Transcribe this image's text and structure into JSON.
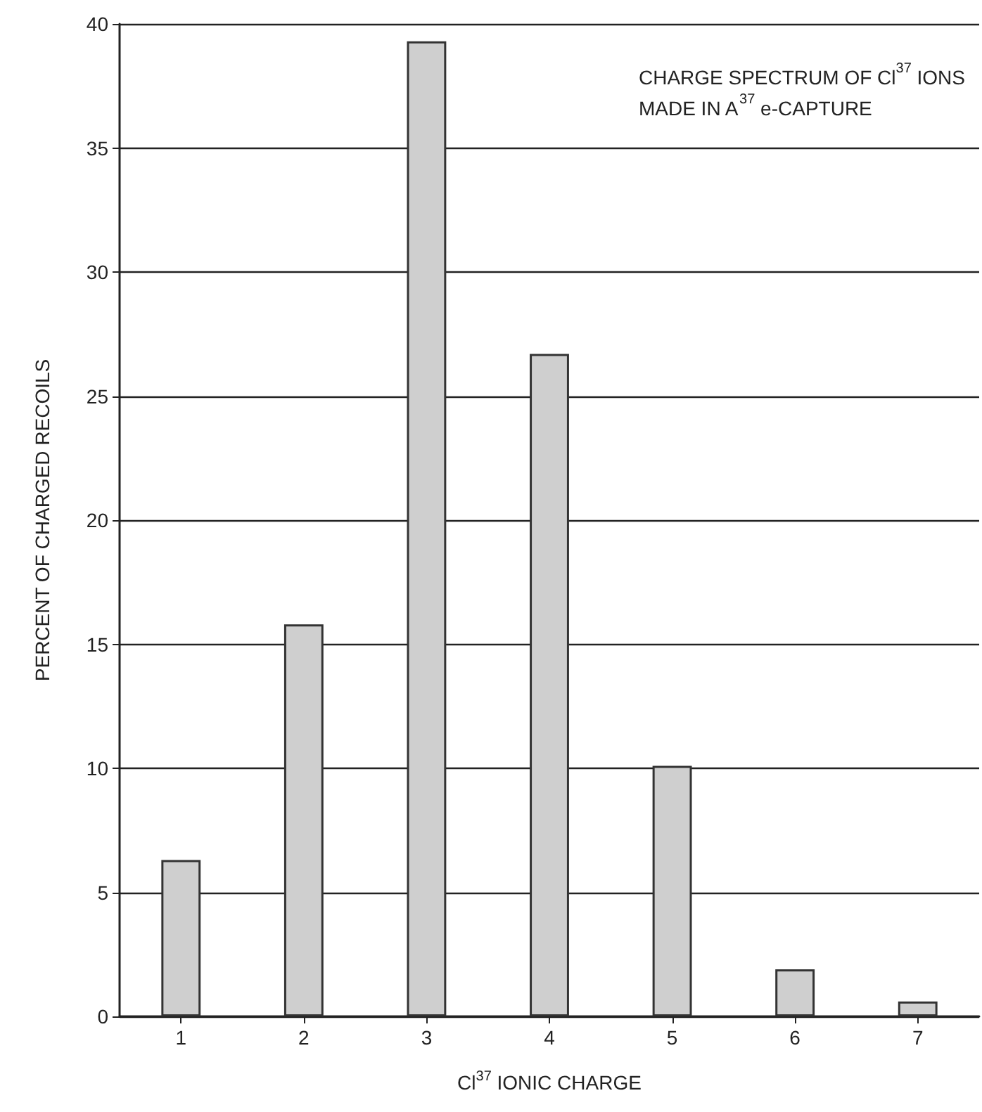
{
  "chart_data": {
    "type": "bar",
    "xlabel": "Cl$^{37}$ IONIC CHARGE",
    "ylabel": "PERCENT OF CHARGED RECOILS",
    "categories": [
      "1",
      "2",
      "3",
      "4",
      "5",
      "6",
      "7"
    ],
    "values": [
      6.3,
      15.8,
      39.3,
      26.7,
      10.1,
      1.9,
      0.6
    ],
    "color": "#cfcfcf",
    "ylim": [
      0,
      40
    ],
    "yticks": [
      0,
      5,
      10,
      15,
      20,
      25,
      30,
      35,
      40
    ],
    "grid": "y",
    "annotations": [
      "CHARGE SPECTRUM OF Cl$^{37}$ IONS\nMADE IN A$^{37}$ e-CAPTURE"
    ]
  }
}
